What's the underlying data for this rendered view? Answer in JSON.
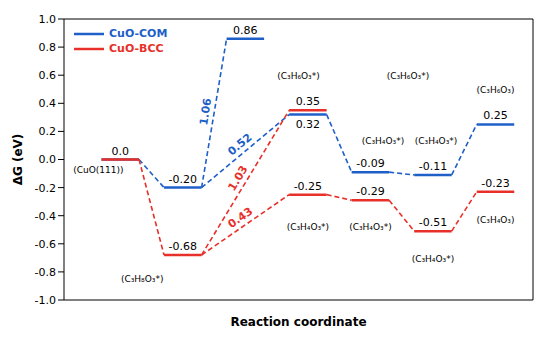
{
  "chart_data": {
    "type": "line",
    "x_label": "Reaction coordinate",
    "y_label": "ΔG (eV)",
    "xlim": [
      -0.9,
      6.6
    ],
    "ylim": [
      -1.0,
      1.0
    ],
    "yticks": [
      {
        "value": -1.0,
        "label": "-1.0"
      },
      -0.8,
      -0.6,
      -0.4,
      -0.2,
      {
        "value": 0,
        "label": "0.0"
      },
      0.2,
      0.4,
      0.6,
      0.8,
      {
        "value": 1.0,
        "label": "1.0"
      }
    ],
    "tick_labels": "y",
    "legend": "upper left",
    "series": [
      {
        "name": "CuO-COM",
        "color": "#1f5fc8",
        "line_style": "dashed",
        "x": [
          0,
          1,
          2,
          3,
          4,
          5,
          6
        ],
        "values": [
          0.0,
          -0.2,
          0.86,
          0.32,
          -0.09,
          -0.11,
          0.25
        ],
        "value_labels": [
          null,
          "-0.20",
          "0.86",
          "0.32",
          "-0.09",
          "-0.11",
          "0.25"
        ],
        "links": [
          [
            0,
            1
          ],
          [
            1,
            2
          ],
          [
            1,
            3
          ],
          [
            3,
            4
          ],
          [
            4,
            5
          ],
          [
            5,
            6
          ]
        ],
        "barriers": [
          {
            "link": 1,
            "value": 1.06
          },
          {
            "link": 2,
            "value": 0.52
          }
        ]
      },
      {
        "name": "CuO-BCC",
        "color": "#e8302a",
        "line_style": "dashed",
        "x": [
          0,
          1,
          3,
          3,
          4,
          5,
          6
        ],
        "values": [
          0.0,
          -0.68,
          0.35,
          -0.25,
          -0.29,
          -0.51,
          -0.23
        ],
        "value_labels": [
          "0.0",
          "-0.68",
          "0.35",
          "-0.25",
          "-0.29",
          "-0.51",
          "-0.23"
        ],
        "links": [
          [
            0,
            1
          ],
          [
            1,
            2
          ],
          [
            1,
            3
          ],
          [
            3,
            4
          ],
          [
            4,
            5
          ],
          [
            5,
            6
          ]
        ],
        "barriers": [
          {
            "link": 1,
            "value": 1.03
          },
          {
            "link": 2,
            "value": 0.43
          }
        ]
      }
    ],
    "annotations": [
      {
        "text": "(CuO(111))"
      },
      {
        "text": "(C₃H₈O₃*)"
      },
      {
        "text": "(C₃H₆O₃*)"
      },
      {
        "text": "(C₃H₆O₃*)"
      },
      {
        "text": "(C₃H₄O₃*)"
      },
      {
        "text": "(C₃H₄O₃*)"
      },
      {
        "text": "(C₃H₆O₃)"
      },
      {
        "text": "(C₃H₄O₃*)"
      },
      {
        "text": "(C₃H₄O₃*)"
      },
      {
        "text": "(C₃H₄O₃*)"
      },
      {
        "text": "(C₃H₄O₃)"
      }
    ]
  }
}
